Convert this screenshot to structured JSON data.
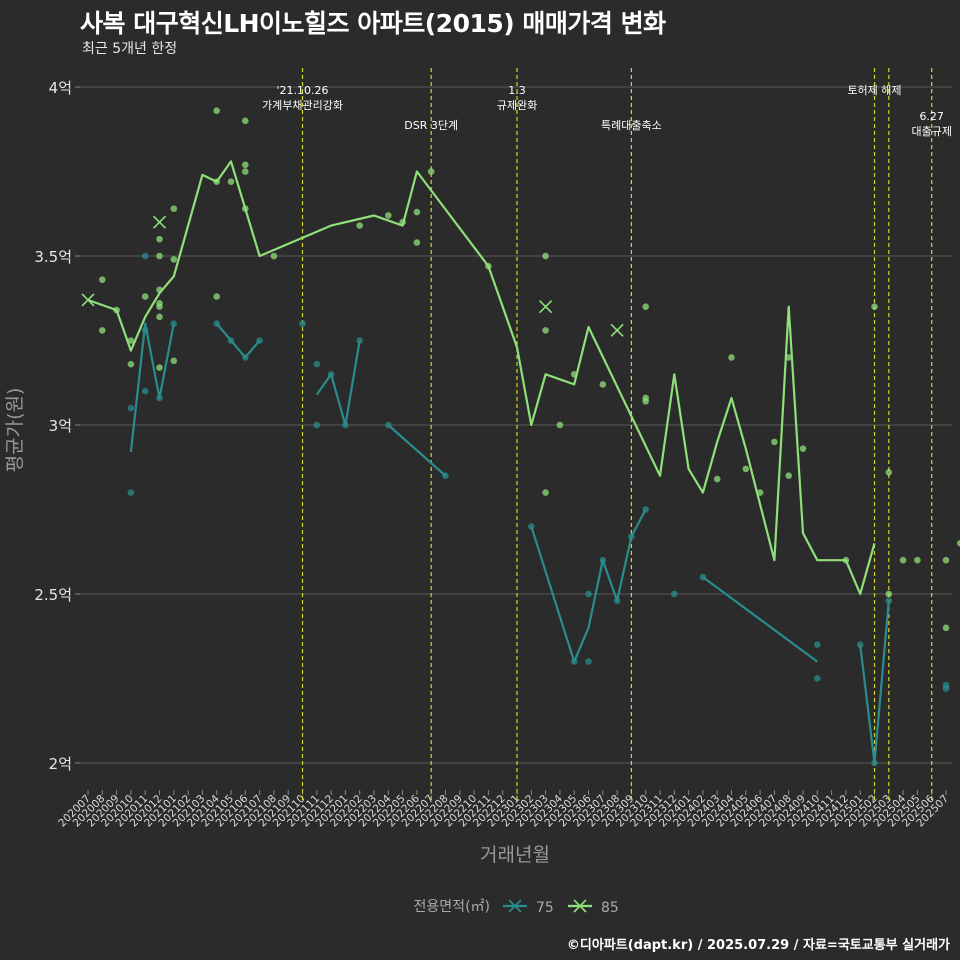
{
  "title": "사복 대구혁신LH이노힐즈 아파트(2015) 매매가격 변화",
  "subtitle": "최근 5개년 한정",
  "credit": "©디아파트(dapt.kr) / 2025.07.29 / 자료=국토교통부 실거래가",
  "colors": {
    "background": "#2b2b2b",
    "grid": "#5a5a5a",
    "s75": "#2a8c8c",
    "s85": "#8fe07a",
    "event": "#d4d42a"
  },
  "chart_data": {
    "type": "line",
    "title": "사복 대구혁신LH이노힐즈 아파트(2015) 매매가격 변화",
    "subtitle": "최근 5개년 한정",
    "xlabel": "거래년월",
    "ylabel": "평균가(원)",
    "ylim": [
      1.92,
      4.08
    ],
    "yticks": [
      {
        "value": 2.0,
        "label": "2억"
      },
      {
        "value": 2.5,
        "label": "2.5억"
      },
      {
        "value": 3.0,
        "label": "3억"
      },
      {
        "value": 3.5,
        "label": "3.5억"
      },
      {
        "value": 4.0,
        "label": "4억"
      }
    ],
    "months": [
      "202007",
      "202008",
      "202009",
      "202010",
      "202011",
      "202012",
      "202101",
      "202102",
      "202103",
      "202104",
      "202105",
      "202106",
      "202107",
      "202108",
      "202109",
      "202110",
      "202111",
      "202112",
      "202201",
      "202202",
      "202203",
      "202204",
      "202205",
      "202206",
      "202207",
      "202208",
      "202209",
      "202210",
      "202211",
      "202212",
      "202301",
      "202302",
      "202303",
      "202304",
      "202305",
      "202306",
      "202307",
      "202308",
      "202309",
      "202310",
      "202311",
      "202312",
      "202401",
      "202402",
      "202403",
      "202404",
      "202405",
      "202406",
      "202407",
      "202408",
      "202409",
      "202410",
      "202411",
      "202412",
      "202501",
      "202502",
      "202503",
      "202504",
      "202505",
      "202506",
      "202507"
    ],
    "legend": {
      "title": "전용면적(㎡)",
      "position": "bottom"
    },
    "grid": true,
    "series": [
      {
        "name": "75",
        "color": "#2a8c8c",
        "segments": [
          [
            [
              3,
              2.92
            ],
            [
              4,
              3.3
            ],
            [
              5,
              3.08
            ],
            [
              6,
              3.3
            ]
          ],
          [
            [
              9,
              3.3
            ],
            [
              10,
              3.25
            ],
            [
              11,
              3.2
            ],
            [
              12,
              3.25
            ]
          ],
          [
            [
              16,
              3.09
            ],
            [
              17,
              3.15
            ],
            [
              18,
              3.0
            ],
            [
              19,
              3.25
            ]
          ],
          [
            [
              21,
              3.0
            ],
            [
              25,
              2.85
            ]
          ],
          [
            [
              31,
              2.7
            ],
            [
              34,
              2.3
            ],
            [
              35,
              2.4
            ],
            [
              36,
              2.6
            ],
            [
              37,
              2.48
            ],
            [
              38,
              2.67
            ],
            [
              39,
              2.75
            ]
          ],
          [
            [
              43,
              2.55
            ],
            [
              51,
              2.3
            ]
          ],
          [
            [
              54,
              2.35
            ],
            [
              55,
              2.0
            ],
            [
              56,
              2.48
            ]
          ]
        ],
        "points": [
          [
            3,
            3.05
          ],
          [
            3,
            2.8
          ],
          [
            4,
            3.5
          ],
          [
            4,
            3.28
          ],
          [
            4,
            3.1
          ],
          [
            5,
            3.08
          ],
          [
            6,
            3.3
          ],
          [
            9,
            3.3
          ],
          [
            10,
            3.25
          ],
          [
            11,
            3.2
          ],
          [
            12,
            3.25
          ],
          [
            15,
            3.3
          ],
          [
            16,
            3.18
          ],
          [
            16,
            3.0
          ],
          [
            17,
            3.15
          ],
          [
            18,
            3.0
          ],
          [
            19,
            3.25
          ],
          [
            21,
            3.0
          ],
          [
            25,
            2.85
          ],
          [
            31,
            2.7
          ],
          [
            34,
            2.3
          ],
          [
            35,
            2.5
          ],
          [
            35,
            2.3
          ],
          [
            36,
            2.6
          ],
          [
            37,
            2.48
          ],
          [
            38,
            2.67
          ],
          [
            39,
            2.75
          ],
          [
            41,
            2.5
          ],
          [
            43,
            2.55
          ],
          [
            51,
            2.35
          ],
          [
            51,
            2.25
          ],
          [
            54,
            2.35
          ],
          [
            55,
            2.0
          ],
          [
            56,
            2.48
          ],
          [
            60,
            2.23
          ],
          [
            60,
            2.22
          ]
        ],
        "cross_points": []
      },
      {
        "name": "85",
        "color": "#8fe07a",
        "segments": [
          [
            [
              0,
              3.37
            ],
            [
              2,
              3.34
            ],
            [
              3,
              3.22
            ],
            [
              4,
              3.32
            ],
            [
              5,
              3.39
            ],
            [
              6,
              3.44
            ],
            [
              8,
              3.74
            ],
            [
              9,
              3.72
            ],
            [
              10,
              3.78
            ],
            [
              12,
              3.5
            ],
            [
              17,
              3.59
            ],
            [
              20,
              3.62
            ],
            [
              22,
              3.59
            ],
            [
              23,
              3.75
            ],
            [
              28,
              3.47
            ],
            [
              30,
              3.23
            ],
            [
              31,
              3.0
            ],
            [
              32,
              3.15
            ],
            [
              34,
              3.12
            ],
            [
              35,
              3.29
            ],
            [
              40,
              2.85
            ],
            [
              41,
              3.15
            ],
            [
              42,
              2.87
            ],
            [
              43,
              2.8
            ],
            [
              44,
              2.95
            ],
            [
              45,
              3.08
            ],
            [
              46,
              2.93
            ],
            [
              48,
              2.6
            ],
            [
              49,
              3.35
            ],
            [
              50,
              2.68
            ],
            [
              51,
              2.6
            ],
            [
              53,
              2.6
            ],
            [
              54,
              2.5
            ],
            [
              55,
              2.65
            ]
          ]
        ],
        "points": [
          [
            1,
            3.43
          ],
          [
            1,
            3.28
          ],
          [
            2,
            3.34
          ],
          [
            3,
            3.25
          ],
          [
            3,
            3.18
          ],
          [
            4,
            3.38
          ],
          [
            5,
            3.55
          ],
          [
            5,
            3.5
          ],
          [
            5,
            3.4
          ],
          [
            5,
            3.36
          ],
          [
            5,
            3.35
          ],
          [
            5,
            3.32
          ],
          [
            5,
            3.17
          ],
          [
            6,
            3.64
          ],
          [
            6,
            3.49
          ],
          [
            6,
            3.19
          ],
          [
            9,
            3.93
          ],
          [
            9,
            3.72
          ],
          [
            9,
            3.38
          ],
          [
            10,
            3.72
          ],
          [
            11,
            3.9
          ],
          [
            11,
            3.75
          ],
          [
            11,
            3.64
          ],
          [
            11,
            3.77
          ],
          [
            13,
            3.5
          ],
          [
            19,
            3.59
          ],
          [
            21,
            3.62
          ],
          [
            22,
            3.6
          ],
          [
            23,
            3.63
          ],
          [
            23,
            3.54
          ],
          [
            24,
            3.75
          ],
          [
            28,
            3.47
          ],
          [
            32,
            3.5
          ],
          [
            32,
            3.28
          ],
          [
            32,
            2.8
          ],
          [
            33,
            3.0
          ],
          [
            34,
            3.15
          ],
          [
            36,
            3.12
          ],
          [
            39,
            3.35
          ],
          [
            39,
            3.08
          ],
          [
            39,
            3.07
          ],
          [
            44,
            2.84
          ],
          [
            45,
            3.2
          ],
          [
            46,
            2.87
          ],
          [
            47,
            2.8
          ],
          [
            48,
            2.95
          ],
          [
            49,
            3.2
          ],
          [
            49,
            2.85
          ],
          [
            50,
            2.93
          ],
          [
            53,
            2.6
          ],
          [
            55,
            3.35
          ],
          [
            56,
            2.86
          ],
          [
            56,
            2.5
          ],
          [
            57,
            2.6
          ],
          [
            58,
            2.6
          ],
          [
            60,
            2.6
          ],
          [
            60,
            2.4
          ],
          [
            61,
            2.65
          ]
        ],
        "cross_points": [
          [
            0,
            3.37
          ],
          [
            5,
            3.6
          ],
          [
            32,
            3.35
          ],
          [
            37,
            3.28
          ]
        ]
      }
    ],
    "events": [
      {
        "x": 15.0,
        "lines": [
          "'21.10.26",
          "가계부채관리강화"
        ],
        "row": 0
      },
      {
        "x": 24.0,
        "lines": [
          "DSR 3단계"
        ],
        "row": 1
      },
      {
        "x": 30.0,
        "lines": [
          "1.3",
          "규제완화"
        ],
        "row": 0
      },
      {
        "x": 38.0,
        "lines": [
          "특례대출축소"
        ],
        "row": 1
      },
      {
        "x": 55.0,
        "lines": [
          "토허제 해제"
        ],
        "row": 0
      },
      {
        "x": 56.0,
        "lines": [],
        "row": 0
      },
      {
        "x": 59.0,
        "lines": [
          "6.27",
          "대출규제"
        ],
        "row": 2
      }
    ]
  }
}
